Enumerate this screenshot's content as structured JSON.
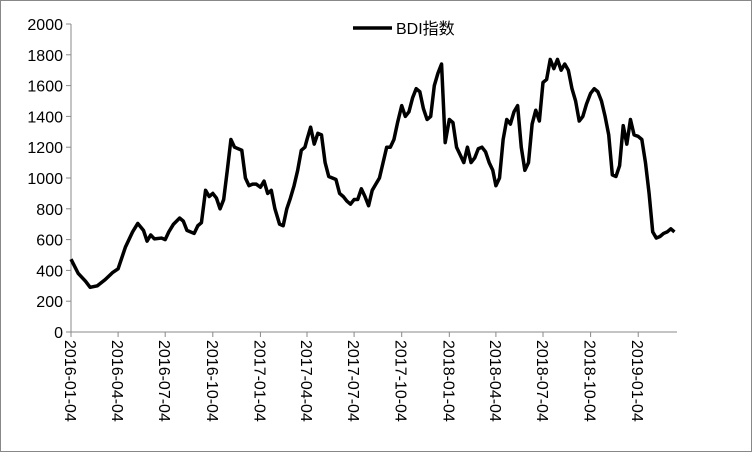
{
  "chart_data": {
    "type": "line",
    "legend": "top",
    "grid": false,
    "ylim": [
      0,
      2000
    ],
    "yticks": [
      0,
      200,
      400,
      600,
      800,
      1000,
      1200,
      1400,
      1600,
      1800,
      2000
    ],
    "xlim": [
      "2016-01-04",
      "2019-03-18"
    ],
    "xticks": [
      "2016-01-04",
      "2016-04-04",
      "2016-07-04",
      "2016-10-04",
      "2017-01-04",
      "2017-04-04",
      "2017-07-04",
      "2017-10-04",
      "2018-01-04",
      "2018-04-04",
      "2018-07-04",
      "2018-10-04",
      "2019-01-04"
    ],
    "x": [
      "2016-01-04",
      "2016-01-18",
      "2016-02-01",
      "2016-02-10",
      "2016-02-24",
      "2016-03-10",
      "2016-03-24",
      "2016-04-04",
      "2016-04-18",
      "2016-05-02",
      "2016-05-12",
      "2016-05-23",
      "2016-05-30",
      "2016-06-06",
      "2016-06-13",
      "2016-06-27",
      "2016-07-04",
      "2016-07-11",
      "2016-07-20",
      "2016-08-01",
      "2016-08-08",
      "2016-08-15",
      "2016-08-29",
      "2016-09-05",
      "2016-09-12",
      "2016-09-20",
      "2016-09-27",
      "2016-10-04",
      "2016-10-11",
      "2016-10-18",
      "2016-10-25",
      "2016-11-01",
      "2016-11-08",
      "2016-11-15",
      "2016-11-29",
      "2016-12-06",
      "2016-12-13",
      "2016-12-20",
      "2016-12-27",
      "2017-01-04",
      "2017-01-11",
      "2017-01-18",
      "2017-01-25",
      "2017-02-01",
      "2017-02-10",
      "2017-02-17",
      "2017-02-24",
      "2017-03-03",
      "2017-03-10",
      "2017-03-17",
      "2017-03-24",
      "2017-03-31",
      "2017-04-04",
      "2017-04-11",
      "2017-04-18",
      "2017-04-25",
      "2017-05-02",
      "2017-05-09",
      "2017-05-16",
      "2017-05-23",
      "2017-05-30",
      "2017-06-06",
      "2017-06-13",
      "2017-06-20",
      "2017-06-27",
      "2017-07-04",
      "2017-07-11",
      "2017-07-18",
      "2017-07-25",
      "2017-08-01",
      "2017-08-08",
      "2017-08-15",
      "2017-08-22",
      "2017-08-29",
      "2017-09-05",
      "2017-09-12",
      "2017-09-19",
      "2017-09-26",
      "2017-10-04",
      "2017-10-11",
      "2017-10-18",
      "2017-10-25",
      "2017-11-01",
      "2017-11-08",
      "2017-11-15",
      "2017-11-22",
      "2017-11-29",
      "2017-12-06",
      "2017-12-13",
      "2017-12-20",
      "2017-12-27",
      "2018-01-04",
      "2018-01-11",
      "2018-01-18",
      "2018-01-25",
      "2018-02-01",
      "2018-02-08",
      "2018-02-15",
      "2018-02-22",
      "2018-03-01",
      "2018-03-08",
      "2018-03-15",
      "2018-03-22",
      "2018-03-29",
      "2018-04-04",
      "2018-04-11",
      "2018-04-18",
      "2018-04-25",
      "2018-05-02",
      "2018-05-09",
      "2018-05-16",
      "2018-05-23",
      "2018-05-30",
      "2018-06-06",
      "2018-06-13",
      "2018-06-20",
      "2018-06-27",
      "2018-07-04",
      "2018-07-11",
      "2018-07-18",
      "2018-07-25",
      "2018-08-01",
      "2018-08-08",
      "2018-08-15",
      "2018-08-22",
      "2018-08-29",
      "2018-09-05",
      "2018-09-12",
      "2018-09-19",
      "2018-09-26",
      "2018-10-04",
      "2018-10-11",
      "2018-10-18",
      "2018-10-25",
      "2018-11-01",
      "2018-11-08",
      "2018-11-15",
      "2018-11-22",
      "2018-11-29",
      "2018-12-06",
      "2018-12-13",
      "2018-12-20",
      "2018-12-27",
      "2019-01-04",
      "2019-01-11",
      "2019-01-18",
      "2019-01-25",
      "2019-02-01",
      "2019-02-08",
      "2019-02-15",
      "2019-02-22",
      "2019-03-01",
      "2019-03-08",
      "2019-03-15"
    ],
    "series": [
      {
        "name": "BDI指数",
        "color": "#000000",
        "values": [
          473,
          380,
          330,
          290,
          300,
          340,
          385,
          410,
          550,
          650,
          705,
          660,
          590,
          630,
          605,
          610,
          600,
          650,
          700,
          740,
          720,
          660,
          640,
          690,
          710,
          920,
          880,
          900,
          870,
          800,
          860,
          1050,
          1250,
          1200,
          1180,
          1000,
          950,
          960,
          960,
          940,
          980,
          900,
          920,
          800,
          700,
          690,
          800,
          870,
          950,
          1050,
          1180,
          1200,
          1250,
          1330,
          1220,
          1290,
          1280,
          1100,
          1010,
          1000,
          990,
          900,
          880,
          850,
          830,
          860,
          860,
          930,
          880,
          820,
          920,
          960,
          1000,
          1100,
          1200,
          1200,
          1250,
          1360,
          1470,
          1400,
          1430,
          1520,
          1580,
          1560,
          1450,
          1380,
          1400,
          1600,
          1680,
          1740,
          1230,
          1380,
          1360,
          1200,
          1150,
          1100,
          1200,
          1100,
          1130,
          1190,
          1200,
          1170,
          1100,
          1050,
          950,
          1000,
          1250,
          1380,
          1350,
          1430,
          1470,
          1200,
          1050,
          1100,
          1350,
          1440,
          1370,
          1620,
          1640,
          1770,
          1710,
          1770,
          1700,
          1740,
          1700,
          1580,
          1500,
          1370,
          1400,
          1480,
          1550,
          1580,
          1560,
          1500,
          1400,
          1280,
          1020,
          1010,
          1080,
          1340,
          1220,
          1380,
          1280,
          1270,
          1250,
          1100,
          900,
          650,
          610,
          620,
          640,
          650,
          670,
          650
        ]
      }
    ]
  }
}
